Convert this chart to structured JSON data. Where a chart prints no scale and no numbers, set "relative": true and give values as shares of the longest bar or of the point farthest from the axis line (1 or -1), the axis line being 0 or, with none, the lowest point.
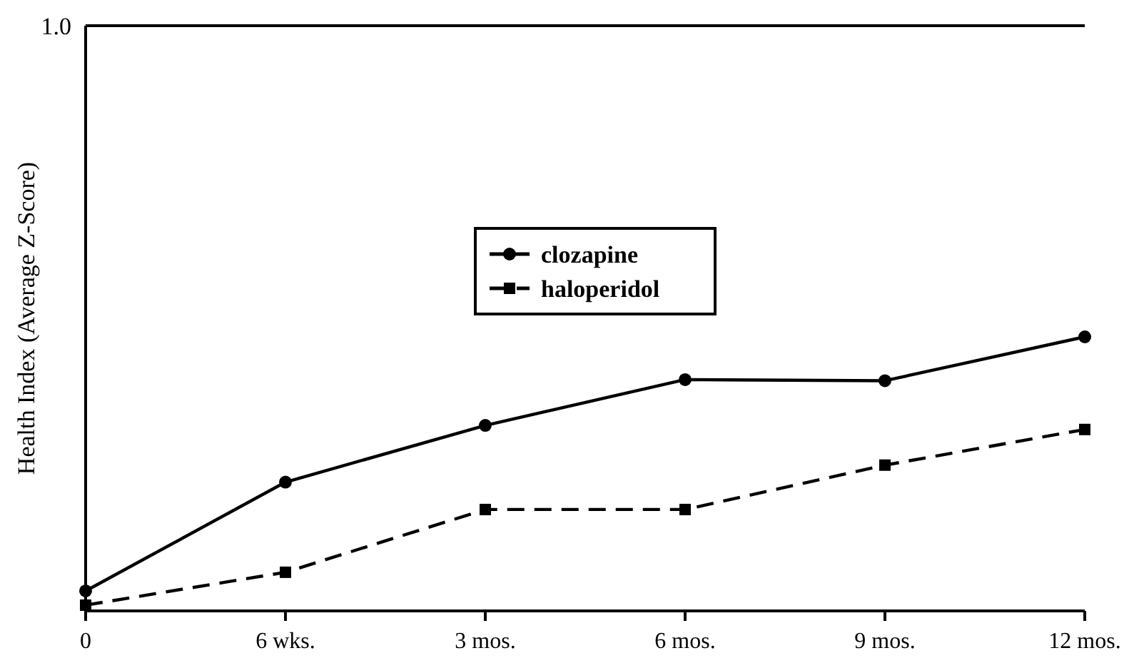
{
  "chart_data": {
    "type": "line",
    "ylabel": "Health Index (Average Z-Score)",
    "categories": [
      "0",
      "6 wks.",
      "3 mos.",
      "6 mos.",
      "9 mos.",
      "12 mos."
    ],
    "relative": true,
    "annotations": [
      "1.0"
    ],
    "legend": "center",
    "series": [
      {
        "name": "clozapine",
        "color": "#000000",
        "marker": "circle",
        "line_style": "solid",
        "values": [
          0.073,
          0.47,
          0.677,
          0.844,
          0.84,
          1
        ]
      },
      {
        "name": "haloperidol",
        "color": "#000000",
        "marker": "square",
        "line_style": "dashed",
        "values": [
          0.021,
          0.141,
          0.37,
          0.37,
          0.532,
          0.662
        ]
      }
    ]
  }
}
